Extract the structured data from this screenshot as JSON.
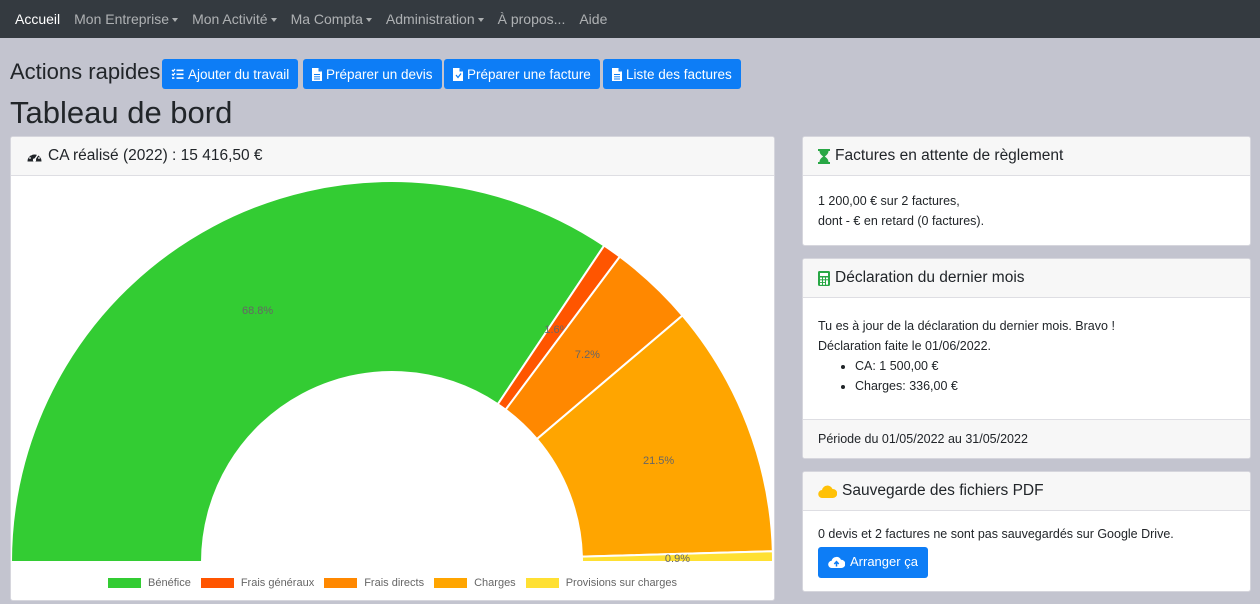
{
  "nav": {
    "items": [
      {
        "label": "Accueil",
        "caret": false,
        "active": true
      },
      {
        "label": "Mon Entreprise",
        "caret": true,
        "active": false
      },
      {
        "label": "Mon Activité",
        "caret": true,
        "active": false
      },
      {
        "label": "Ma Compta",
        "caret": true,
        "active": false
      },
      {
        "label": "Administration",
        "caret": true,
        "active": false
      },
      {
        "label": "À propos...",
        "caret": false,
        "active": false
      },
      {
        "label": "Aide",
        "caret": false,
        "active": false
      }
    ]
  },
  "quick_actions": {
    "title": "Actions rapides",
    "buttons": [
      {
        "label": "Ajouter du travail",
        "icon": "tasks-icon"
      },
      {
        "label": "Préparer un devis",
        "icon": "file-icon"
      },
      {
        "label": "Préparer une facture",
        "icon": "file-invoice-icon"
      },
      {
        "label": "Liste des factures",
        "icon": "file-list-icon"
      }
    ]
  },
  "page_title": "Tableau de bord",
  "ca_card": {
    "title": "CA réalisé (2022) : 15 416,50 €",
    "icon": "gauge-icon"
  },
  "chart_data": {
    "type": "pie",
    "variant": "half-doughnut",
    "categories": [
      "Bénéfice",
      "Frais généraux",
      "Frais directs",
      "Charges",
      "Provisions sur charges"
    ],
    "values": [
      68.8,
      1.6,
      7.2,
      21.5,
      0.9
    ],
    "value_labels": [
      "68.8%",
      "1.6%",
      "7.2%",
      "21.5%",
      "0.9%"
    ],
    "colors": [
      "#33cc33",
      "#ff5500",
      "#ff8800",
      "#ffa500",
      "#ffe033"
    ],
    "legend_position": "bottom"
  },
  "invoices_card": {
    "title": "Factures en attente de règlement",
    "icon": "hourglass-icon",
    "icon_color": "#28a745",
    "line1": "1 200,00 € sur 2 factures,",
    "line2": "dont - € en retard (0 factures)."
  },
  "declaration_card": {
    "title": "Déclaration du dernier mois",
    "icon": "calculator-icon",
    "icon_color": "#28a745",
    "line1": "Tu es à jour de la déclaration du dernier mois. Bravo !",
    "line2": "Déclaration faite le 01/06/2022.",
    "items": [
      "CA: 1 500,00 €",
      "Charges: 336,00 €"
    ],
    "footer": "Période du 01/05/2022 au 31/05/2022"
  },
  "backup_card": {
    "title": "Sauvegarde des fichiers PDF",
    "icon": "cloud-icon",
    "icon_color": "#ffc107",
    "text": "0 devis et 2 factures ne sont pas sauvegardés sur Google Drive.",
    "button_label": "Arranger ça",
    "button_icon": "cloud-upload-icon"
  }
}
